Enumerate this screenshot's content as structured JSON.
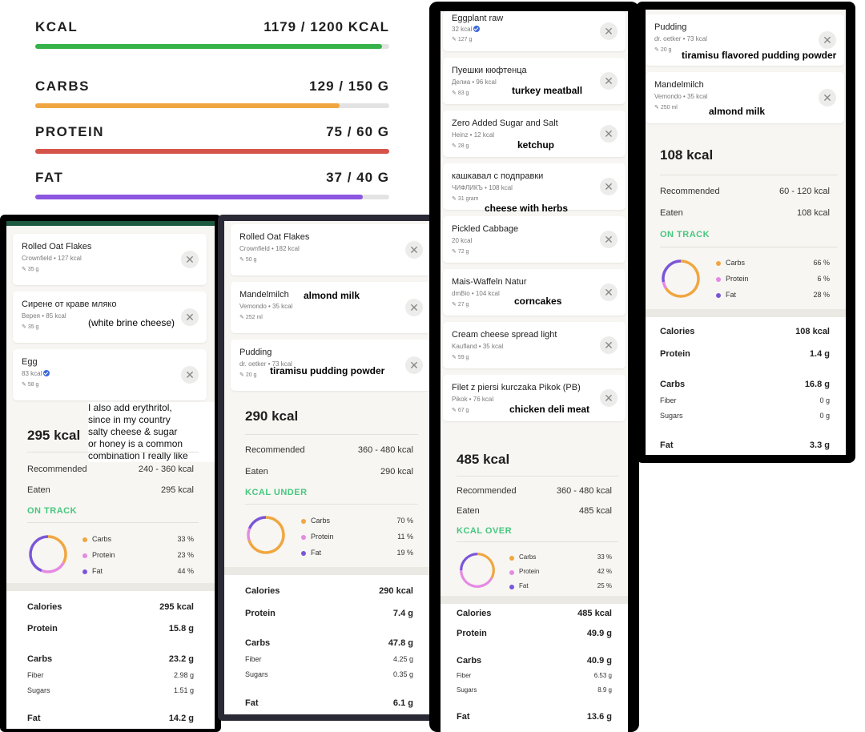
{
  "colors": {
    "kcal": "#35b24a",
    "carbs": "#f0a640",
    "protein": "#d6534a",
    "fat": "#8b56e0",
    "donut_carbs": "#f0a640",
    "donut_protein": "#e58ae3",
    "donut_fat": "#7b55d9",
    "status_green": "#47c77f"
  },
  "summary": [
    {
      "label": "KCAL",
      "value": "1179 / 1200 KCAL",
      "fill": 0.98,
      "color": "#35b24a"
    },
    {
      "label": "CARBS",
      "value": "129 / 150 G",
      "fill": 0.86,
      "color": "#f0a640"
    },
    {
      "label": "PROTEIN",
      "value": "75 / 60 G",
      "fill": 1.0,
      "color": "#d6534a"
    },
    {
      "label": "FAT",
      "value": "37 / 40 G",
      "fill": 0.925,
      "color": "#8b56e0"
    }
  ],
  "meal1": {
    "items": [
      {
        "name": "Rolled Oat Flakes",
        "sub": "Crownfield • 127 kcal",
        "portion": "35 g"
      },
      {
        "name": "Сирене от краве мляко",
        "sub": "Верея • 85 kcal",
        "portion": "35 g",
        "note": "(white brine cheese)"
      },
      {
        "name": "Egg",
        "sub": "83 kcal",
        "portion": "58 g",
        "verified": true
      }
    ],
    "note": "I also add erythritol,\nsince in my country\nsalty cheese & sugar\nor honey is a common\ncombination I really like",
    "total": "295 kcal",
    "recommended_label": "Recommended",
    "recommended": "240 - 360 kcal",
    "eaten_label": "Eaten",
    "eaten": "295 kcal",
    "status": "ON TRACK",
    "macros": [
      {
        "label": "Carbs",
        "pct": "33 %",
        "value": 33
      },
      {
        "label": "Protein",
        "pct": "23 %",
        "value": 23
      },
      {
        "label": "Fat",
        "pct": "44 %",
        "value": 44
      }
    ],
    "calories_label": "Calories",
    "calories": "295 kcal",
    "protein_label": "Protein",
    "protein": "15.8 g",
    "carbs_label": "Carbs",
    "carbs": "23.2 g",
    "fiber_label": "Fiber",
    "fiber": "2.98 g",
    "sugars_label": "Sugars",
    "sugars": "1.51 g",
    "fat_label": "Fat",
    "fat": "14.2 g"
  },
  "meal2": {
    "items": [
      {
        "name": "Rolled Oat Flakes",
        "sub": "Crownfield • 182 kcal",
        "portion": "50 g"
      },
      {
        "name": "Mandelmilch",
        "sub": "Vemondo • 35 kcal",
        "portion": "252 ml",
        "note": "almond milk"
      },
      {
        "name": "Pudding",
        "sub": "dr. oetker • 73 kcal",
        "portion": "20 g",
        "note": "tiramisu pudding powder"
      }
    ],
    "total": "290 kcal",
    "recommended_label": "Recommended",
    "recommended": "360 - 480 kcal",
    "eaten_label": "Eaten",
    "eaten": "290 kcal",
    "status": "KCAL UNDER",
    "macros": [
      {
        "label": "Carbs",
        "pct": "70 %",
        "value": 70
      },
      {
        "label": "Protein",
        "pct": "11 %",
        "value": 11
      },
      {
        "label": "Fat",
        "pct": "19 %",
        "value": 19
      }
    ],
    "calories_label": "Calories",
    "calories": "290 kcal",
    "protein_label": "Protein",
    "protein": "7.4 g",
    "carbs_label": "Carbs",
    "carbs": "47.8 g",
    "fiber_label": "Fiber",
    "fiber": "4.25 g",
    "sugars_label": "Sugars",
    "sugars": "0.35 g",
    "fat_label": "Fat",
    "fat": "6.1 g"
  },
  "meal3": {
    "items": [
      {
        "name": "Eggplant raw",
        "sub": "32 kcal",
        "portion": "127 g",
        "verified": true
      },
      {
        "name": "Пуешки кюфтенца",
        "sub": "Делиа • 96 kcal",
        "portion": "83 g",
        "note": "turkey meatball"
      },
      {
        "name": "Zero Added Sugar and Salt",
        "sub": "Heinz • 12 kcal",
        "portion": "28 g",
        "note": "ketchup"
      },
      {
        "name": "кашкавал с подправки",
        "sub": "ЧИФЛИКЪ • 108 kcal",
        "portion": "31 gram",
        "note": "cheese with herbs"
      },
      {
        "name": "Pickled Cabbage",
        "sub": "20 kcal",
        "portion": "72 g"
      },
      {
        "name": "Mais-Waffeln Natur",
        "sub": "dmBio • 104 kcal",
        "portion": "27 g",
        "note": "corncakes"
      },
      {
        "name": "Cream cheese spread light",
        "sub": "Kaufland • 35 kcal",
        "portion": "59 g"
      },
      {
        "name": "Filet z piersi kurczaka Pikok (PB)",
        "sub": "Pikok • 76 kcal",
        "portion": "67 g",
        "note": "chicken deli meat"
      }
    ],
    "total": "485 kcal",
    "recommended_label": "Recommended",
    "recommended": "360 - 480 kcal",
    "eaten_label": "Eaten",
    "eaten": "485 kcal",
    "status": "KCAL OVER",
    "macros": [
      {
        "label": "Carbs",
        "pct": "33 %",
        "value": 33
      },
      {
        "label": "Protein",
        "pct": "42 %",
        "value": 42
      },
      {
        "label": "Fat",
        "pct": "25 %",
        "value": 25
      }
    ],
    "calories_label": "Calories",
    "calories": "485 kcal",
    "protein_label": "Protein",
    "protein": "49.9 g",
    "carbs_label": "Carbs",
    "carbs": "40.9 g",
    "fiber_label": "Fiber",
    "fiber": "6.53 g",
    "sugars_label": "Sugars",
    "sugars": "8.9 g",
    "fat_label": "Fat",
    "fat": "13.6 g"
  },
  "meal4": {
    "items": [
      {
        "name": "Pudding",
        "sub": "dr. oetker • 73 kcal",
        "portion": "20 g",
        "note": "tiramisu flavored pudding powder"
      },
      {
        "name": "Mandelmilch",
        "sub": "Vemondo • 35 kcal",
        "portion": "250 ml",
        "note": "almond milk"
      }
    ],
    "total": "108 kcal",
    "recommended_label": "Recommended",
    "recommended": "60 - 120 kcal",
    "eaten_label": "Eaten",
    "eaten": "108 kcal",
    "status": "ON TRACK",
    "macros": [
      {
        "label": "Carbs",
        "pct": "66 %",
        "value": 66
      },
      {
        "label": "Protein",
        "pct": "6 %",
        "value": 6
      },
      {
        "label": "Fat",
        "pct": "28 %",
        "value": 28
      }
    ],
    "calories_label": "Calories",
    "calories": "108 kcal",
    "protein_label": "Protein",
    "protein": "1.4 g",
    "carbs_label": "Carbs",
    "carbs": "16.8 g",
    "fiber_label": "Fiber",
    "fiber": "0 g",
    "sugars_label": "Sugars",
    "sugars": "0 g",
    "fat_label": "Fat",
    "fat": "3.3 g"
  },
  "icons": {
    "remove": "close-icon",
    "portion": "pencil-icon",
    "verified": "verified-badge-icon"
  },
  "glyphs": {
    "close": "✕",
    "pencil": "✎"
  }
}
